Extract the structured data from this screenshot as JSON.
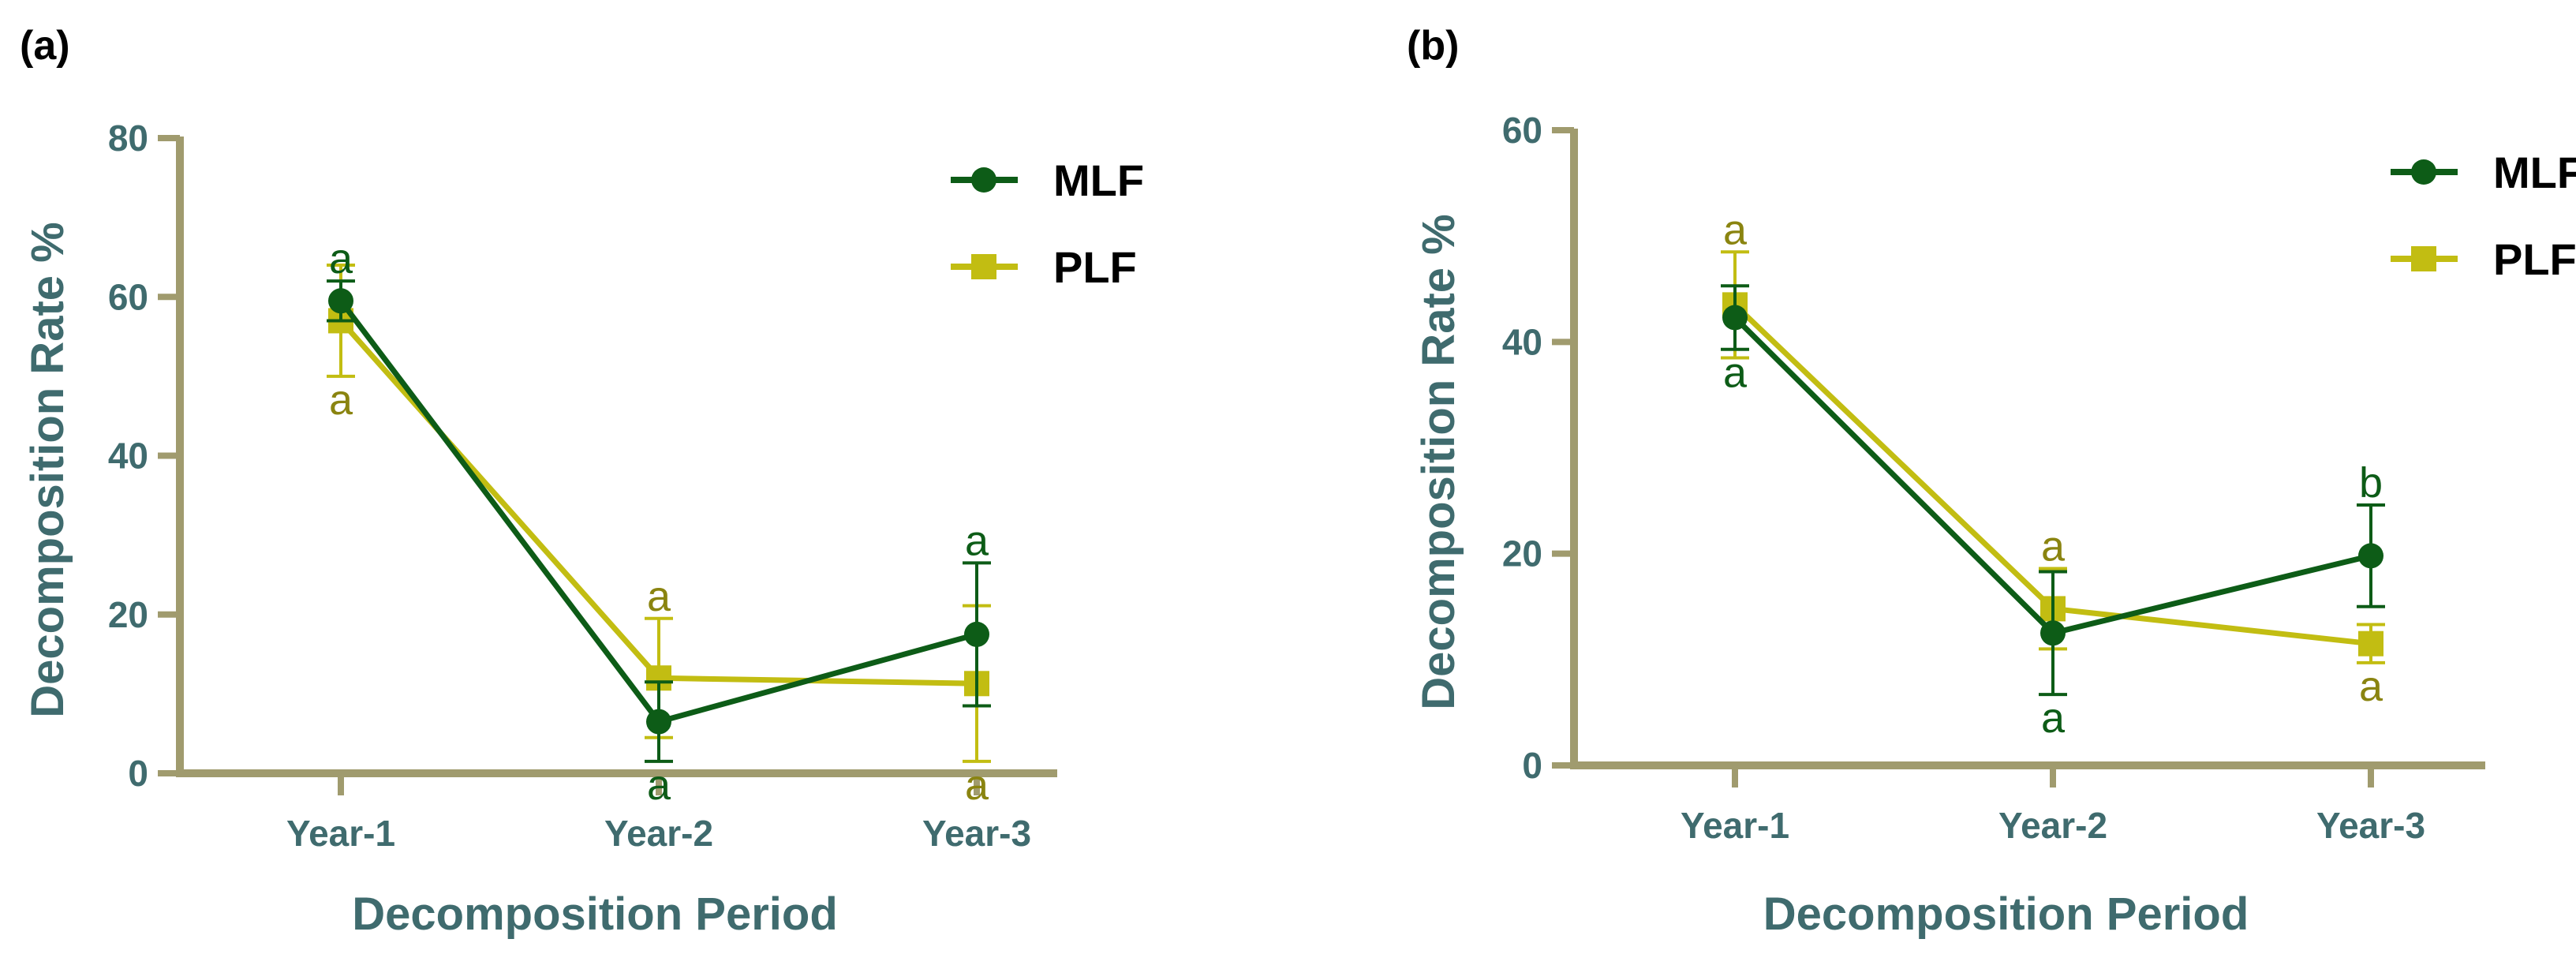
{
  "colors": {
    "axis": "#a09b6e",
    "text": "#3f6b6e",
    "MLF": "#0d5c17",
    "PLF": "#c2bd12",
    "PLF_letter": "#8a8410"
  },
  "chart_data": [
    {
      "panel": "(a)",
      "type": "line",
      "xlabel": "Decomposition Period",
      "ylabel": "Decomposition Rate %",
      "categories": [
        "Year-1",
        "Year-2",
        "Year-3"
      ],
      "ylim": [
        0,
        80
      ],
      "yticks": [
        0,
        20,
        40,
        60,
        80
      ],
      "legend_position": "top-right",
      "series": [
        {
          "name": "MLF",
          "values": [
            59.5,
            6.5,
            17.5
          ],
          "error": [
            2.5,
            5.0,
            9.0
          ],
          "letters": [
            "a",
            "a",
            "a"
          ]
        },
        {
          "name": "PLF",
          "values": [
            57,
            12,
            11.3
          ],
          "error": [
            7.0,
            7.5,
            9.8
          ],
          "letters": [
            "a",
            "a",
            "a"
          ]
        }
      ]
    },
    {
      "panel": "(b)",
      "type": "line",
      "xlabel": "Decomposition Period",
      "ylabel": "Decomposition Rate %",
      "categories": [
        "Year-1",
        "Year-2",
        "Year-3"
      ],
      "ylim": [
        0,
        60
      ],
      "yticks": [
        0,
        20,
        40,
        60
      ],
      "legend_position": "top-right",
      "series": [
        {
          "name": "MLF",
          "values": [
            42.3,
            12.5,
            19.8
          ],
          "error": [
            3.0,
            5.8,
            4.8
          ],
          "letters": [
            "a",
            "a",
            "b"
          ]
        },
        {
          "name": "PLF",
          "values": [
            43.5,
            14.8,
            11.5
          ],
          "error": [
            5.0,
            3.8,
            1.8
          ],
          "letters": [
            "a",
            "a",
            "a"
          ]
        }
      ]
    }
  ]
}
